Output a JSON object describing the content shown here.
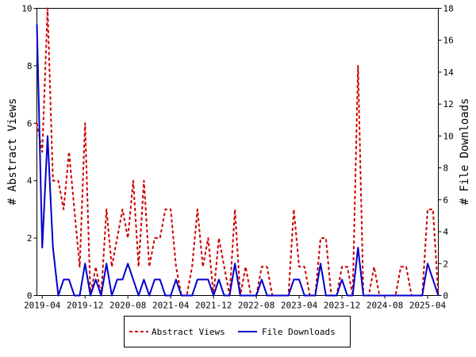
{
  "chart_data": {
    "type": "line",
    "title": "",
    "xlabel": "",
    "ylabel": "# Abstract Views",
    "y2label": "# File Downloads",
    "ylim": [
      0,
      10
    ],
    "y2lim": [
      0,
      18
    ],
    "yticks": [
      "0",
      "2",
      "4",
      "6",
      "8",
      "10"
    ],
    "y2ticks": [
      "0",
      "2",
      "4",
      "6",
      "8",
      "10",
      "12",
      "14",
      "16",
      "18"
    ],
    "x_tick_labels": [
      "2019-04",
      "2019-12",
      "2020-08",
      "2021-04",
      "2021-12",
      "2022-08",
      "2023-04",
      "2023-12",
      "2024-08",
      "2025-04"
    ],
    "x": [
      "2019-03",
      "2019-04",
      "2019-05",
      "2019-06",
      "2019-07",
      "2019-08",
      "2019-09",
      "2019-10",
      "2019-11",
      "2019-12",
      "2020-01",
      "2020-02",
      "2020-03",
      "2020-04",
      "2020-05",
      "2020-06",
      "2020-07",
      "2020-08",
      "2020-09",
      "2020-10",
      "2020-11",
      "2020-12",
      "2021-01",
      "2021-02",
      "2021-03",
      "2021-04",
      "2021-05",
      "2021-06",
      "2021-07",
      "2021-08",
      "2021-09",
      "2021-10",
      "2021-11",
      "2021-12",
      "2022-01",
      "2022-02",
      "2022-03",
      "2022-04",
      "2022-05",
      "2022-06",
      "2022-07",
      "2022-08",
      "2022-09",
      "2022-10",
      "2022-11",
      "2022-12",
      "2023-01",
      "2023-02",
      "2023-03",
      "2023-04",
      "2023-05",
      "2023-06",
      "2023-07",
      "2023-08",
      "2023-09",
      "2023-10",
      "2023-11",
      "2023-12",
      "2024-01",
      "2024-02",
      "2024-03",
      "2024-04",
      "2024-05",
      "2024-06",
      "2024-07",
      "2024-08",
      "2024-09",
      "2024-10",
      "2024-11",
      "2024-12",
      "2025-01",
      "2025-02",
      "2025-03",
      "2025-04",
      "2025-05",
      "2025-06"
    ],
    "series": [
      {
        "name": "Abstract Views",
        "axis": "left",
        "color": "#cc0000",
        "dash": true,
        "values": [
          6,
          5,
          10,
          4,
          4,
          3,
          5,
          3,
          1,
          6,
          0,
          1,
          0,
          3,
          1,
          2,
          3,
          2,
          4,
          1,
          4,
          1,
          2,
          2,
          3,
          3,
          1,
          0,
          0,
          1,
          3,
          1,
          2,
          0,
          2,
          1,
          0,
          3,
          0,
          1,
          0,
          0,
          1,
          1,
          0,
          0,
          0,
          0,
          3,
          1,
          1,
          0,
          0,
          2,
          2,
          0,
          0,
          1,
          1,
          0,
          8,
          0,
          0,
          1,
          0,
          0,
          0,
          0,
          1,
          1,
          0,
          0,
          0,
          3,
          3,
          0
        ]
      },
      {
        "name": "File Downloads",
        "axis": "right",
        "color": "#0000cc",
        "dash": false,
        "values": [
          17,
          3,
          10,
          3,
          0,
          1,
          1,
          0,
          0,
          2,
          0,
          1,
          0,
          2,
          0,
          1,
          1,
          2,
          1,
          0,
          1,
          0,
          1,
          1,
          0,
          0,
          1,
          0,
          0,
          0,
          1,
          1,
          1,
          0,
          1,
          0,
          0,
          2,
          0,
          0,
          0,
          0,
          1,
          0,
          0,
          0,
          0,
          0,
          1,
          1,
          0,
          0,
          0,
          2,
          0,
          0,
          0,
          1,
          0,
          0,
          3,
          0,
          0,
          0,
          0,
          0,
          0,
          0,
          0,
          0,
          0,
          0,
          0,
          2,
          1,
          0
        ]
      }
    ],
    "grid": false,
    "legend_position": "bottom-center"
  }
}
